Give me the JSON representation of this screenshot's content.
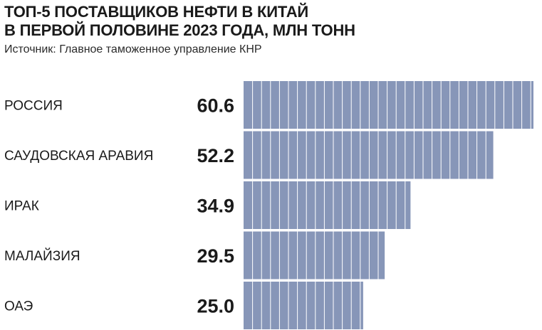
{
  "header": {
    "title_line1": "ТОП-5 ПОСТАВЩИКОВ НЕФТИ В КИТАЙ",
    "title_line2": "В ПЕРВОЙ ПОЛОВИНЕ 2023 ГОДА, МЛН ТОНН",
    "source": "Источник: Главное таможенное управление КНР"
  },
  "colors": {
    "bar": "#8796b8",
    "bar_divider": "#ffffff",
    "text": "#1a1a1a"
  },
  "chart_data": {
    "type": "bar",
    "orientation": "horizontal",
    "title": "ТОП-5 ПОСТАВЩИКОВ НЕФТИ В КИТАЙ В ПЕРВОЙ ПОЛОВИНЕ 2023 ГОДА, МЛН ТОНН",
    "categories": [
      "РОССИЯ",
      "САУДОВСКАЯ АРАВИЯ",
      "ИРАК",
      "МАЛАЙЗИЯ",
      "ОАЭ"
    ],
    "values": [
      60.6,
      52.2,
      34.9,
      29.5,
      25.0
    ],
    "value_labels": [
      "60.6",
      "52.2",
      "34.9",
      "29.5",
      "25.0"
    ],
    "xlim": [
      0,
      60.6
    ],
    "grid": false,
    "legend": "none"
  }
}
